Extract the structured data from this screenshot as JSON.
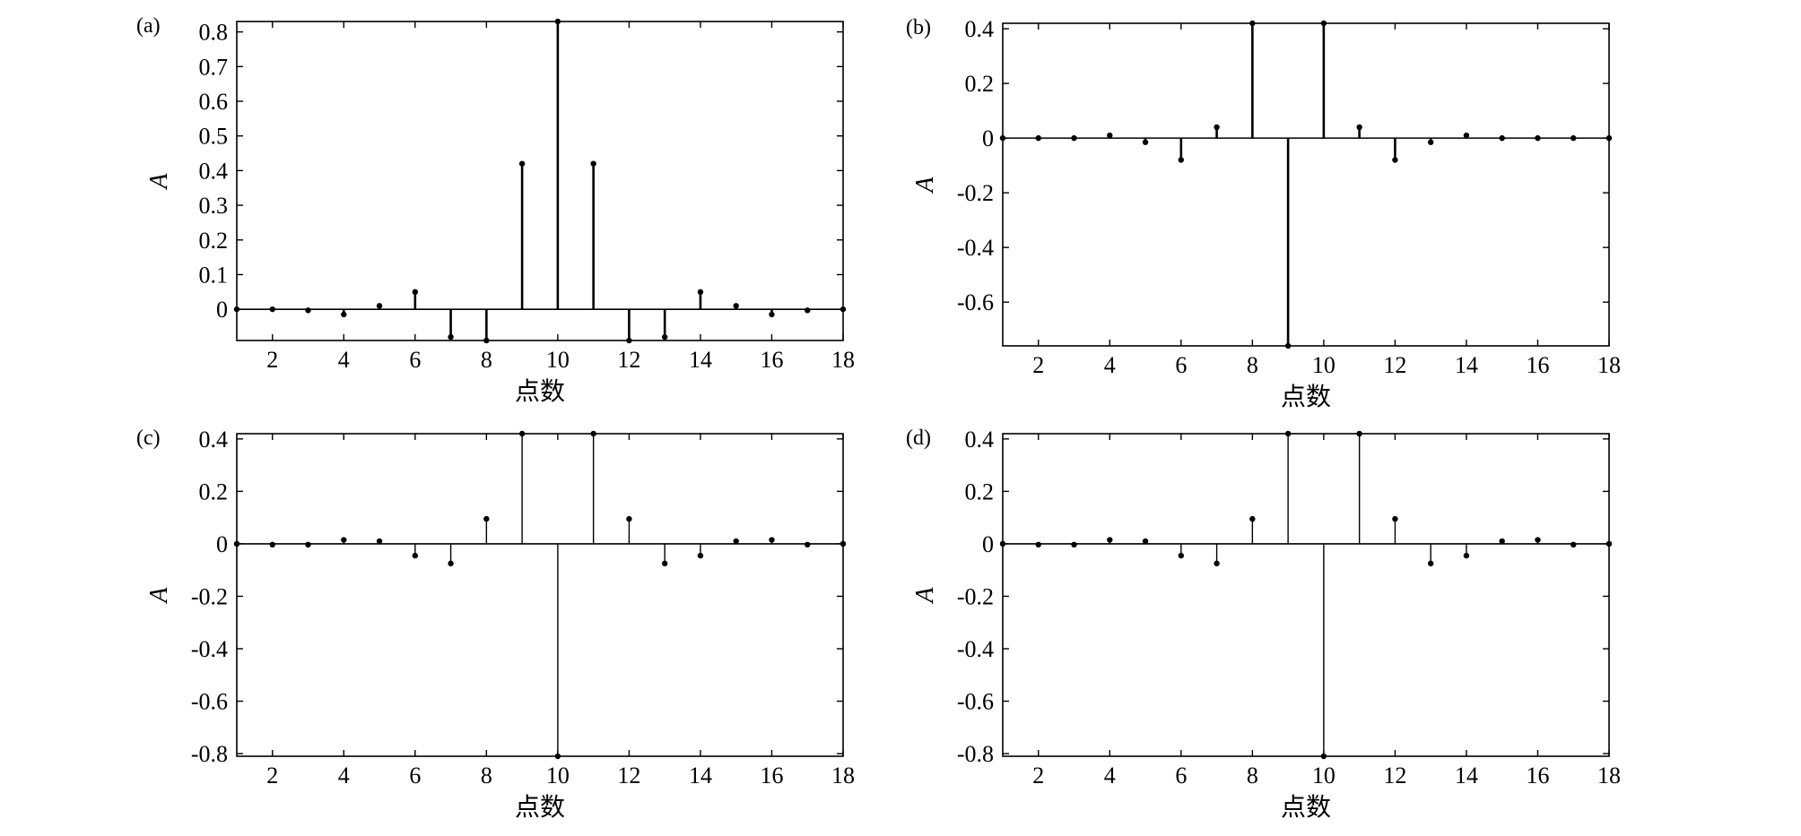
{
  "chart_data": [
    {
      "type": "stem",
      "panel_label": "(a)",
      "xlabel": "点数",
      "ylabel": "A",
      "xlim": [
        1,
        18
      ],
      "ylim": [
        -0.09,
        0.83
      ],
      "xticks": [
        2,
        4,
        6,
        8,
        10,
        12,
        14,
        16,
        18
      ],
      "yticks": [
        0,
        0.1,
        0.2,
        0.3,
        0.4,
        0.5,
        0.6,
        0.7,
        0.8
      ],
      "ytick_labels": [
        "0",
        "0.1",
        "0.2",
        "0.3",
        "0.4",
        "0.5",
        "0.6",
        "0.7",
        "0.8"
      ],
      "x": [
        1,
        2,
        3,
        4,
        5,
        6,
        7,
        8,
        9,
        10,
        11,
        12,
        13,
        14,
        15,
        16,
        17,
        18
      ],
      "values": [
        0,
        0,
        -0.003,
        -0.015,
        0.01,
        0.05,
        -0.08,
        -0.09,
        0.42,
        0.83,
        0.42,
        -0.09,
        -0.08,
        0.05,
        0.01,
        -0.015,
        -0.003,
        0
      ]
    },
    {
      "type": "stem",
      "panel_label": "(b)",
      "xlabel": "点数",
      "ylabel": "A",
      "xlim": [
        1,
        18
      ],
      "ylim": [
        -0.76,
        0.42
      ],
      "xticks": [
        2,
        4,
        6,
        8,
        10,
        12,
        14,
        16,
        18
      ],
      "yticks": [
        -0.6,
        -0.4,
        -0.2,
        0,
        0.2,
        0.4
      ],
      "ytick_labels": [
        "-0.6",
        "-0.4",
        "-0.2",
        "0",
        "0.2",
        "0.4"
      ],
      "x": [
        1,
        2,
        3,
        4,
        5,
        6,
        7,
        8,
        9,
        10,
        11,
        12,
        13,
        14,
        15,
        16,
        17,
        18
      ],
      "values": [
        0,
        0,
        0,
        0.01,
        -0.015,
        -0.08,
        0.04,
        0.42,
        -0.76,
        0.42,
        0.04,
        -0.08,
        -0.015,
        0.01,
        0,
        0,
        0,
        0
      ]
    },
    {
      "type": "stem",
      "panel_label": "(c)",
      "xlabel": "点数",
      "ylabel": "A",
      "xlim": [
        1,
        18
      ],
      "ylim": [
        -0.81,
        0.42
      ],
      "xticks": [
        2,
        4,
        6,
        8,
        10,
        12,
        14,
        16,
        18
      ],
      "yticks": [
        -0.8,
        -0.6,
        -0.4,
        -0.2,
        0,
        0.2,
        0.4
      ],
      "ytick_labels": [
        "-0.8",
        "-0.6",
        "-0.4",
        "-0.2",
        "0",
        "0.2",
        "0.4"
      ],
      "x": [
        1,
        2,
        3,
        4,
        5,
        6,
        7,
        8,
        9,
        10,
        11,
        12,
        13,
        14,
        15,
        16,
        17,
        18
      ],
      "values": [
        0,
        -0.003,
        -0.003,
        0.015,
        0.01,
        -0.045,
        -0.075,
        0.095,
        0.42,
        -0.81,
        0.42,
        0.095,
        -0.075,
        -0.045,
        0.01,
        0.015,
        -0.003,
        0
      ]
    },
    {
      "type": "stem",
      "panel_label": "(d)",
      "xlabel": "点数",
      "ylabel": "A",
      "xlim": [
        1,
        18
      ],
      "ylim": [
        -0.81,
        0.42
      ],
      "xticks": [
        2,
        4,
        6,
        8,
        10,
        12,
        14,
        16,
        18
      ],
      "yticks": [
        -0.8,
        -0.6,
        -0.4,
        -0.2,
        0,
        0.2,
        0.4
      ],
      "ytick_labels": [
        "-0.8",
        "-0.6",
        "-0.4",
        "-0.2",
        "0",
        "0.2",
        "0.4"
      ],
      "x": [
        1,
        2,
        3,
        4,
        5,
        6,
        7,
        8,
        9,
        10,
        11,
        12,
        13,
        14,
        15,
        16,
        17,
        18
      ],
      "values": [
        0,
        -0.003,
        -0.003,
        0.015,
        0.01,
        -0.045,
        -0.075,
        0.095,
        0.42,
        -0.81,
        0.42,
        0.095,
        -0.075,
        -0.045,
        0.01,
        0.015,
        -0.003,
        0
      ]
    }
  ]
}
